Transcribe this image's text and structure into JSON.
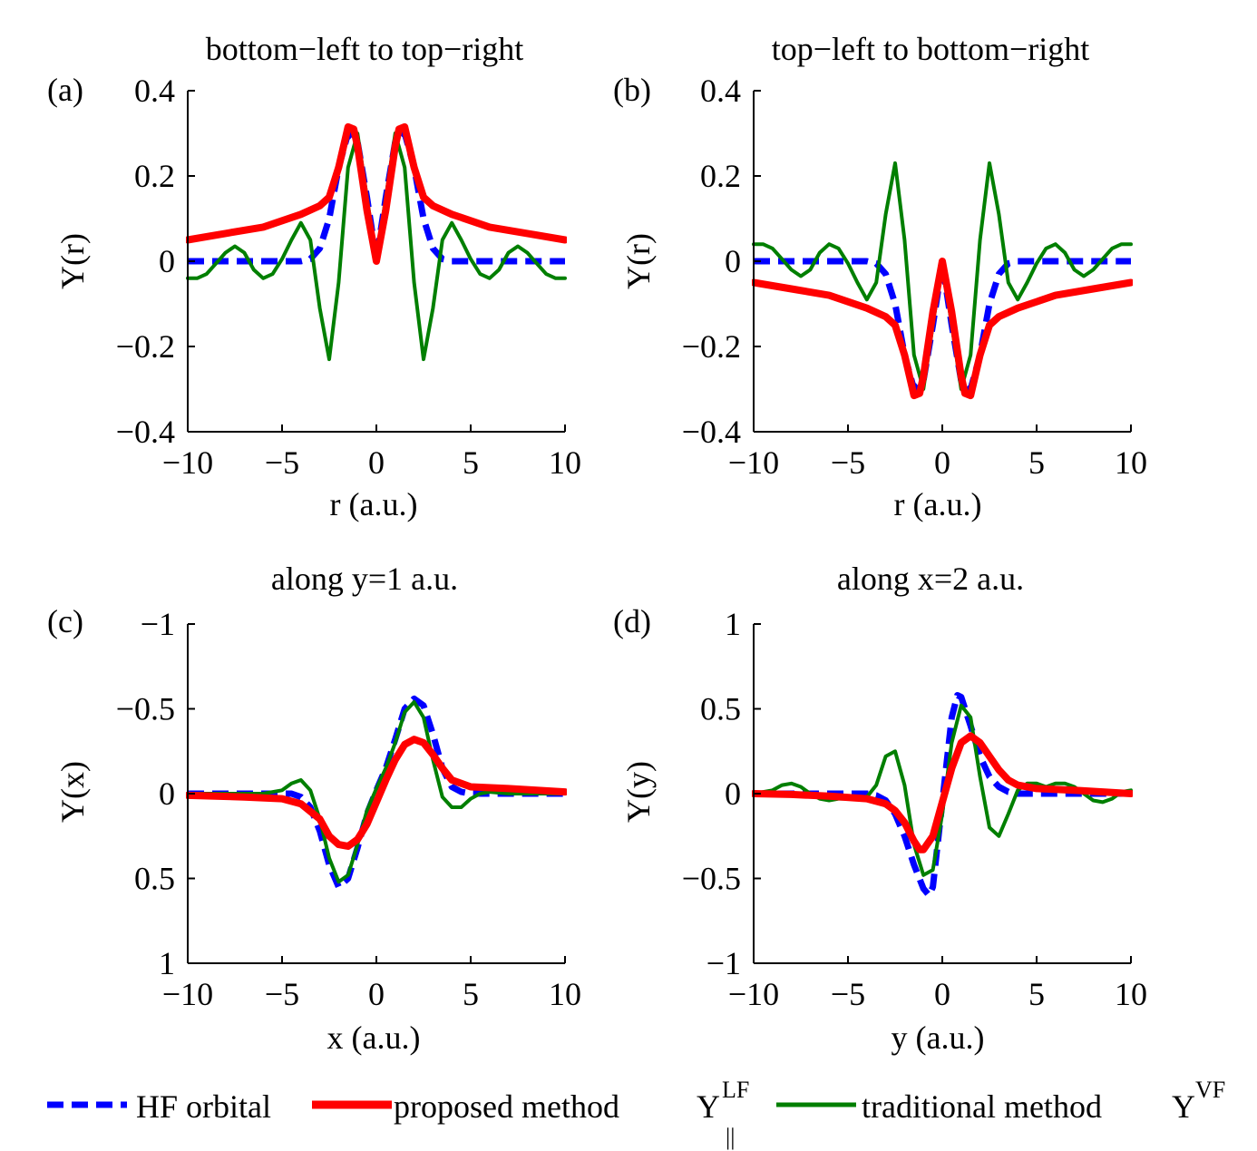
{
  "colors": {
    "hf": "#0000FF",
    "proposed": "#FF0000",
    "traditional": "#007F00",
    "axis": "#000000"
  },
  "legend": {
    "hf_label": "HF orbital",
    "proposed_label": "proposed method",
    "proposed_sym": "Y",
    "proposed_sup": "LF",
    "proposed_sub": "||",
    "traditional_label": "traditional method",
    "traditional_sym": "Y",
    "traditional_sup": "VF"
  },
  "chart_data": [
    {
      "type": "line",
      "panel": "(a)",
      "title": "bottom−left to top−right",
      "xlabel": "r (a.u.)",
      "ylabel": "Y(r)",
      "xlim": [
        -10,
        10
      ],
      "ylim": [
        -0.4,
        0.4
      ],
      "y_reversed": false,
      "xticks": [
        -10,
        -5,
        0,
        5,
        10
      ],
      "xtick_labels": [
        "−10",
        "−5",
        "0",
        "5",
        "10"
      ],
      "yticks": [
        -0.4,
        -0.2,
        0,
        0.2,
        0.4
      ],
      "ytick_labels": [
        "−0.4",
        "−0.2",
        "0",
        "0.2",
        "0.4"
      ],
      "series": [
        {
          "name": "HF orbital",
          "style": "dashed",
          "x": [
            -10,
            -4,
            -3.5,
            -3,
            -2.5,
            -2,
            -1.5,
            -1,
            -0.5,
            0,
            0.5,
            1,
            1.5,
            2,
            2.5,
            3,
            3.5,
            4,
            10
          ],
          "y": [
            0,
            0,
            0.005,
            0.03,
            0.1,
            0.22,
            0.3,
            0.28,
            0.15,
            0.005,
            0.15,
            0.28,
            0.3,
            0.22,
            0.1,
            0.03,
            0.005,
            0,
            0
          ]
        },
        {
          "name": "proposed method",
          "style": "solid",
          "x": [
            -10,
            -8,
            -6,
            -4,
            -3,
            -2.5,
            -2,
            -1.5,
            -1.2,
            -1,
            -0.5,
            0,
            0.5,
            1,
            1.2,
            1.5,
            2,
            2.5,
            3,
            4,
            6,
            8,
            10
          ],
          "y": [
            0.05,
            0.065,
            0.08,
            0.11,
            0.13,
            0.15,
            0.22,
            0.315,
            0.31,
            0.27,
            0.12,
            0.0,
            0.12,
            0.27,
            0.31,
            0.315,
            0.22,
            0.15,
            0.13,
            0.11,
            0.08,
            0.065,
            0.05
          ]
        },
        {
          "name": "traditional method",
          "style": "solid",
          "x": [
            -10,
            -9.5,
            -9,
            -8.5,
            -8,
            -7.5,
            -7,
            -6.5,
            -6,
            -5.5,
            -5,
            -4.5,
            -4,
            -3.5,
            -3,
            -2.5,
            -2,
            -1.5,
            -1,
            -0.5,
            0,
            0.5,
            1,
            1.5,
            2,
            2.5,
            3,
            3.5,
            4,
            4.5,
            5,
            5.5,
            6,
            6.5,
            7,
            7.5,
            8,
            8.5,
            9,
            9.5,
            10
          ],
          "y": [
            -0.04,
            -0.04,
            -0.03,
            -0.005,
            0.02,
            0.035,
            0.02,
            -0.02,
            -0.04,
            -0.03,
            0.005,
            0.05,
            0.09,
            0.05,
            -0.11,
            -0.23,
            -0.05,
            0.22,
            0.3,
            0.15,
            0.0,
            0.15,
            0.3,
            0.22,
            -0.05,
            -0.23,
            -0.11,
            0.05,
            0.09,
            0.05,
            0.005,
            -0.03,
            -0.04,
            -0.02,
            0.02,
            0.035,
            0.02,
            -0.005,
            -0.03,
            -0.04,
            -0.04
          ]
        }
      ]
    },
    {
      "type": "line",
      "panel": "(b)",
      "title": "top−left to bottom−right",
      "xlabel": "r (a.u.)",
      "ylabel": "Y(r)",
      "xlim": [
        -10,
        10
      ],
      "ylim": [
        -0.4,
        0.4
      ],
      "y_reversed": false,
      "xticks": [
        -10,
        -5,
        0,
        5,
        10
      ],
      "xtick_labels": [
        "−10",
        "−5",
        "0",
        "5",
        "10"
      ],
      "yticks": [
        -0.4,
        -0.2,
        0,
        0.2,
        0.4
      ],
      "ytick_labels": [
        "−0.4",
        "−0.2",
        "0",
        "0.2",
        "0.4"
      ],
      "series": [
        {
          "name": "HF orbital",
          "style": "dashed",
          "x": [
            -10,
            -4,
            -3.5,
            -3,
            -2.5,
            -2,
            -1.5,
            -1,
            -0.5,
            0,
            0.5,
            1,
            1.5,
            2,
            2.5,
            3,
            3.5,
            4,
            10
          ],
          "y": [
            0,
            0,
            -0.005,
            -0.03,
            -0.1,
            -0.22,
            -0.3,
            -0.28,
            -0.15,
            -0.005,
            -0.15,
            -0.28,
            -0.3,
            -0.22,
            -0.1,
            -0.03,
            -0.005,
            0,
            0
          ]
        },
        {
          "name": "proposed method",
          "style": "solid",
          "x": [
            -10,
            -8,
            -6,
            -4,
            -3,
            -2.5,
            -2,
            -1.5,
            -1.2,
            -1,
            -0.5,
            0,
            0.5,
            1,
            1.2,
            1.5,
            2,
            2.5,
            3,
            4,
            6,
            8,
            10
          ],
          "y": [
            -0.05,
            -0.065,
            -0.08,
            -0.11,
            -0.13,
            -0.15,
            -0.22,
            -0.315,
            -0.31,
            -0.27,
            -0.12,
            0.0,
            -0.12,
            -0.27,
            -0.31,
            -0.315,
            -0.22,
            -0.15,
            -0.13,
            -0.11,
            -0.08,
            -0.065,
            -0.05
          ]
        },
        {
          "name": "traditional method",
          "style": "solid",
          "x": [
            -10,
            -9.5,
            -9,
            -8.5,
            -8,
            -7.5,
            -7,
            -6.5,
            -6,
            -5.5,
            -5,
            -4.5,
            -4,
            -3.5,
            -3,
            -2.5,
            -2,
            -1.5,
            -1,
            -0.5,
            0,
            0.5,
            1,
            1.5,
            2,
            2.5,
            3,
            3.5,
            4,
            4.5,
            5,
            5.5,
            6,
            6.5,
            7,
            7.5,
            8,
            8.5,
            9,
            9.5,
            10
          ],
          "y": [
            0.04,
            0.04,
            0.03,
            0.005,
            -0.02,
            -0.035,
            -0.02,
            0.02,
            0.04,
            0.03,
            -0.005,
            -0.05,
            -0.09,
            -0.05,
            0.11,
            0.23,
            0.05,
            -0.22,
            -0.3,
            -0.15,
            0.0,
            -0.15,
            -0.3,
            -0.22,
            0.05,
            0.23,
            0.11,
            -0.05,
            -0.09,
            -0.05,
            -0.005,
            0.03,
            0.04,
            0.02,
            -0.02,
            -0.035,
            -0.02,
            0.005,
            0.03,
            0.04,
            0.04
          ]
        }
      ]
    },
    {
      "type": "line",
      "panel": "(c)",
      "title": "along y=1 a.u.",
      "xlabel": "x (a.u.)",
      "ylabel": "Y(x)",
      "xlim": [
        -10,
        10
      ],
      "ylim": [
        -1,
        1
      ],
      "y_reversed": true,
      "xticks": [
        -10,
        -5,
        0,
        5,
        10
      ],
      "xtick_labels": [
        "−10",
        "−5",
        "0",
        "5",
        "10"
      ],
      "yticks": [
        -1,
        -0.5,
        0,
        0.5,
        1
      ],
      "ytick_labels": [
        "−1",
        "−0.5",
        "0",
        "0.5",
        "1"
      ],
      "series": [
        {
          "name": "HF orbital",
          "style": "dashed",
          "x": [
            -10,
            -4.5,
            -4,
            -3.5,
            -3,
            -2.5,
            -2,
            -1.5,
            -1,
            -0.5,
            0,
            0.5,
            1,
            1.5,
            2,
            2.5,
            3,
            3.5,
            4,
            4.5,
            5,
            10
          ],
          "y": [
            0,
            0,
            0.02,
            0.08,
            0.22,
            0.42,
            0.55,
            0.5,
            0.32,
            0.12,
            -0.02,
            -0.15,
            -0.32,
            -0.5,
            -0.56,
            -0.52,
            -0.35,
            -0.15,
            -0.04,
            -0.01,
            0,
            0
          ]
        },
        {
          "name": "proposed method",
          "style": "solid",
          "x": [
            -10,
            -7,
            -5,
            -4,
            -3,
            -2.5,
            -2,
            -1.5,
            -1,
            -0.5,
            0,
            0.5,
            1,
            1.5,
            2,
            2.5,
            3,
            3.5,
            4,
            5,
            7,
            10
          ],
          "y": [
            0.01,
            0.02,
            0.03,
            0.06,
            0.15,
            0.25,
            0.3,
            0.31,
            0.27,
            0.18,
            0.05,
            -0.08,
            -0.2,
            -0.29,
            -0.32,
            -0.3,
            -0.23,
            -0.15,
            -0.08,
            -0.04,
            -0.03,
            -0.01
          ]
        },
        {
          "name": "traditional method",
          "style": "solid",
          "x": [
            -10,
            -6,
            -5,
            -4.5,
            -4,
            -3.5,
            -3,
            -2.5,
            -2,
            -1.5,
            -1,
            -0.5,
            0,
            0.5,
            1,
            1.5,
            2,
            2.5,
            3,
            3.5,
            4,
            4.5,
            5,
            5.5,
            6,
            7,
            10
          ],
          "y": [
            0,
            0,
            -0.02,
            -0.06,
            -0.08,
            -0.02,
            0.15,
            0.38,
            0.52,
            0.48,
            0.3,
            0.1,
            -0.03,
            -0.15,
            -0.3,
            -0.48,
            -0.54,
            -0.45,
            -0.2,
            0.02,
            0.08,
            0.08,
            0.03,
            0.0,
            -0.01,
            0,
            0
          ]
        }
      ]
    },
    {
      "type": "line",
      "panel": "(d)",
      "title": "along x=2 a.u.",
      "xlabel": "y (a.u.)",
      "ylabel": "Y(y)",
      "xlim": [
        -10,
        10
      ],
      "ylim": [
        -1,
        1
      ],
      "y_reversed": false,
      "xticks": [
        -10,
        -5,
        0,
        5,
        10
      ],
      "xtick_labels": [
        "−10",
        "−5",
        "0",
        "5",
        "10"
      ],
      "yticks": [
        -1,
        -0.5,
        0,
        0.5,
        1
      ],
      "ytick_labels": [
        "−1",
        "−0.5",
        "0",
        "0.5",
        "1"
      ],
      "series": [
        {
          "name": "HF orbital",
          "style": "dashed",
          "x": [
            -10,
            -4.5,
            -4,
            -3.5,
            -3,
            -2.5,
            -2,
            -1.5,
            -1,
            -0.7,
            -0.5,
            0,
            0.5,
            0.8,
            1,
            1.5,
            2,
            2.5,
            3,
            3.5,
            4,
            4.5,
            10
          ],
          "y": [
            0,
            0,
            0,
            -0.01,
            -0.04,
            -0.12,
            -0.25,
            -0.42,
            -0.56,
            -0.6,
            -0.55,
            -0.05,
            0.45,
            0.58,
            0.57,
            0.4,
            0.22,
            0.1,
            0.04,
            0.01,
            0,
            0,
            0
          ]
        },
        {
          "name": "proposed method",
          "style": "solid",
          "x": [
            -10,
            -8,
            -6,
            -4,
            -3,
            -2.5,
            -2,
            -1.5,
            -1.2,
            -1,
            -0.5,
            0,
            0.5,
            1,
            1.5,
            2,
            2.5,
            3,
            3.5,
            4,
            5,
            7,
            10
          ],
          "y": [
            0,
            -0.005,
            -0.015,
            -0.03,
            -0.06,
            -0.1,
            -0.17,
            -0.28,
            -0.33,
            -0.33,
            -0.25,
            -0.05,
            0.15,
            0.3,
            0.34,
            0.3,
            0.22,
            0.14,
            0.08,
            0.05,
            0.03,
            0.02,
            0
          ]
        },
        {
          "name": "traditional method",
          "style": "solid",
          "x": [
            -10,
            -9,
            -8.5,
            -8,
            -7.5,
            -7,
            -6.5,
            -6,
            -5.5,
            -5,
            -4.5,
            -4,
            -3.5,
            -3,
            -2.5,
            -2,
            -1.5,
            -1,
            -0.5,
            0,
            0.5,
            1,
            1.5,
            2,
            2.5,
            3,
            3.5,
            4,
            4.5,
            5,
            5.5,
            6,
            6.5,
            7,
            7.5,
            8,
            8.5,
            9,
            9.5,
            10
          ],
          "y": [
            0,
            0.02,
            0.05,
            0.06,
            0.04,
            0,
            -0.03,
            -0.04,
            -0.03,
            -0.03,
            -0.02,
            -0.02,
            0.05,
            0.22,
            0.25,
            0.05,
            -0.3,
            -0.48,
            -0.45,
            -0.12,
            0.3,
            0.52,
            0.45,
            0.1,
            -0.2,
            -0.25,
            -0.12,
            0.02,
            0.06,
            0.06,
            0.04,
            0.06,
            0.06,
            0.04,
            0,
            -0.04,
            -0.05,
            -0.03,
            0.01,
            0.02
          ]
        }
      ]
    }
  ]
}
